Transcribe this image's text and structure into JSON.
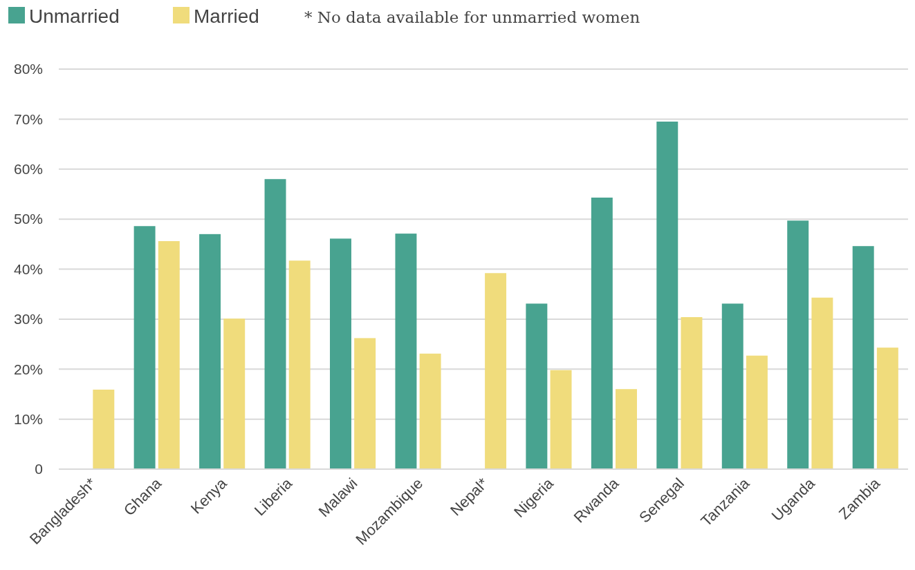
{
  "chart_data": {
    "type": "bar",
    "categories": [
      "Bangladesh*",
      "Ghana",
      "Kenya",
      "Liberia",
      "Malawi",
      "Mozambique",
      "Nepal*",
      "Nigeria",
      "Rwanda",
      "Senegal",
      "Tanzania",
      "Uganda",
      "Zambia"
    ],
    "series": [
      {
        "name": "Unmarried",
        "color": "#48a390",
        "values": [
          null,
          48.6,
          47.0,
          58.0,
          46.1,
          47.1,
          null,
          33.1,
          54.3,
          69.5,
          33.1,
          49.7,
          44.6
        ]
      },
      {
        "name": "Married",
        "color": "#f0dc7c",
        "values": [
          15.9,
          45.6,
          30.1,
          41.7,
          26.2,
          23.1,
          39.2,
          19.8,
          16.0,
          30.4,
          22.7,
          34.3,
          24.3
        ]
      }
    ],
    "ylim": [
      0,
      80
    ],
    "yticks": [
      {
        "value": 0,
        "label": "0"
      },
      {
        "value": 10,
        "label": "10%"
      },
      {
        "value": 20,
        "label": "20%"
      },
      {
        "value": 30,
        "label": "30%"
      },
      {
        "value": 40,
        "label": "40%"
      },
      {
        "value": 50,
        "label": "50%"
      },
      {
        "value": 60,
        "label": "60%"
      },
      {
        "value": 70,
        "label": "70%"
      },
      {
        "value": 80,
        "label": "80%"
      }
    ],
    "grid": "y",
    "legend": "top left",
    "annotations": [
      "* No data available for unmarried women"
    ]
  }
}
